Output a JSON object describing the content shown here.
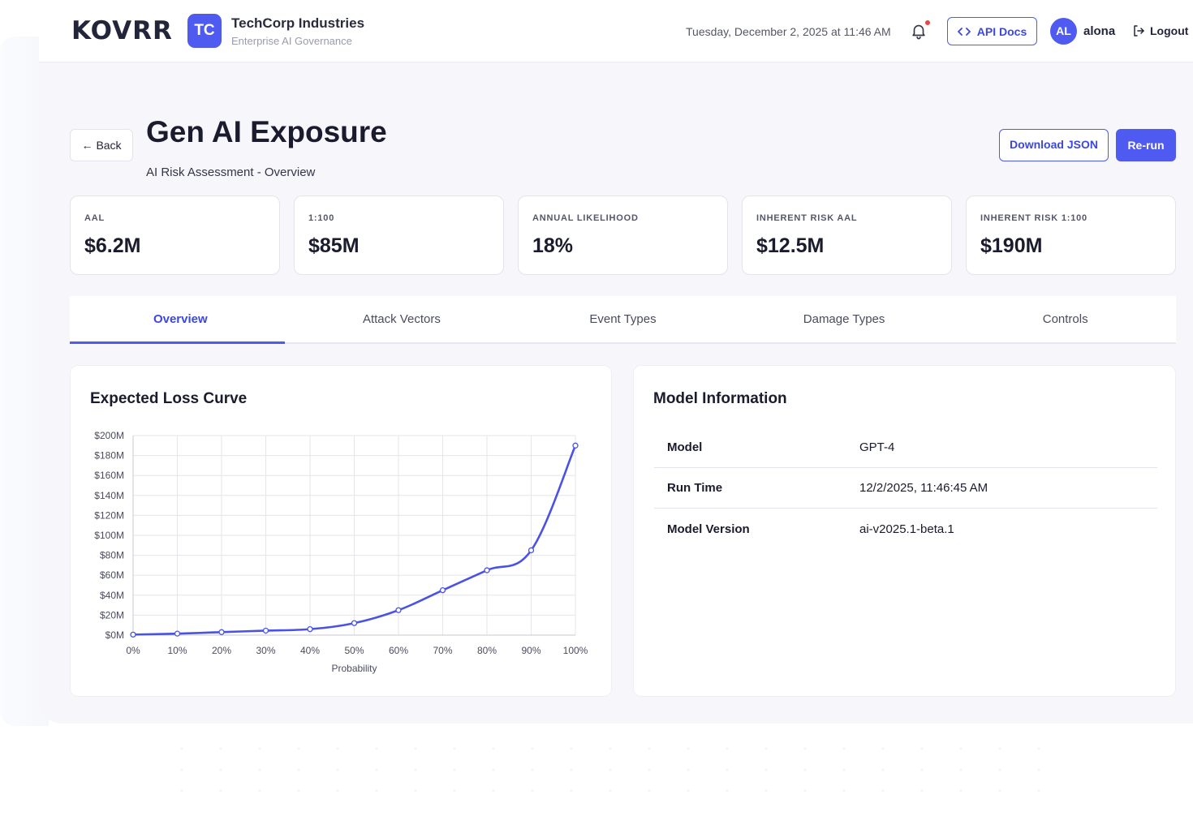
{
  "brand": {
    "logo_text": "KOVRR",
    "accent": "#4f5bf0"
  },
  "org": {
    "initials": "TC",
    "name": "TechCorp Industries",
    "subtitle": "Enterprise AI Governance"
  },
  "header": {
    "datetime": "Tuesday, December 2, 2025 at 11:46 AM",
    "api_docs_label": "API Docs",
    "user_initials": "AL",
    "username": "alona",
    "logout_label": "Logout"
  },
  "page": {
    "back_label": "Back",
    "title": "Gen AI Exposure",
    "subtitle": "AI Risk Assessment - Overview",
    "download_label": "Download JSON",
    "rerun_label": "Re-run"
  },
  "metrics": [
    {
      "label": "AAL",
      "value": "$6.2M"
    },
    {
      "label": "1:100",
      "value": "$85M"
    },
    {
      "label": "ANNUAL LIKELIHOOD",
      "value": "18%"
    },
    {
      "label": "INHERENT RISK AAL",
      "value": "$12.5M"
    },
    {
      "label": "INHERENT RISK 1:100",
      "value": "$190M"
    }
  ],
  "tabs": [
    {
      "label": "Overview",
      "active": true
    },
    {
      "label": "Attack Vectors",
      "active": false
    },
    {
      "label": "Event Types",
      "active": false
    },
    {
      "label": "Damage Types",
      "active": false
    },
    {
      "label": "Controls",
      "active": false
    }
  ],
  "chart_title": "Expected Loss Curve",
  "chart_data": {
    "type": "line",
    "title": "Expected Loss Curve",
    "xlabel": "Probability",
    "ylabel": "",
    "x": [
      0,
      10,
      20,
      30,
      40,
      50,
      60,
      70,
      80,
      90,
      100
    ],
    "x_tick_labels": [
      "0%",
      "10%",
      "20%",
      "30%",
      "40%",
      "50%",
      "60%",
      "70%",
      "80%",
      "90%",
      "100%"
    ],
    "y_tick_values": [
      0,
      20,
      40,
      60,
      80,
      100,
      120,
      140,
      160,
      180,
      200
    ],
    "y_tick_labels": [
      "$0M",
      "$20M",
      "$40M",
      "$60M",
      "$80M",
      "$100M",
      "$120M",
      "$140M",
      "$160M",
      "$180M",
      "$200M"
    ],
    "ylim": [
      0,
      200
    ],
    "xlim": [
      0,
      100
    ],
    "grid": true,
    "series": [
      {
        "name": "Expected Loss ($M)",
        "color": "#4a52e6",
        "values": [
          0.5,
          1.5,
          3,
          4.5,
          6,
          12,
          25,
          45,
          65,
          85,
          190
        ]
      }
    ]
  },
  "model_info": {
    "title": "Model Information",
    "rows": [
      {
        "key": "Model",
        "value": "GPT-4"
      },
      {
        "key": "Run Time",
        "value": "12/2/2025, 11:46:45 AM"
      },
      {
        "key": "Model Version",
        "value": "ai-v2025.1-beta.1"
      }
    ]
  }
}
